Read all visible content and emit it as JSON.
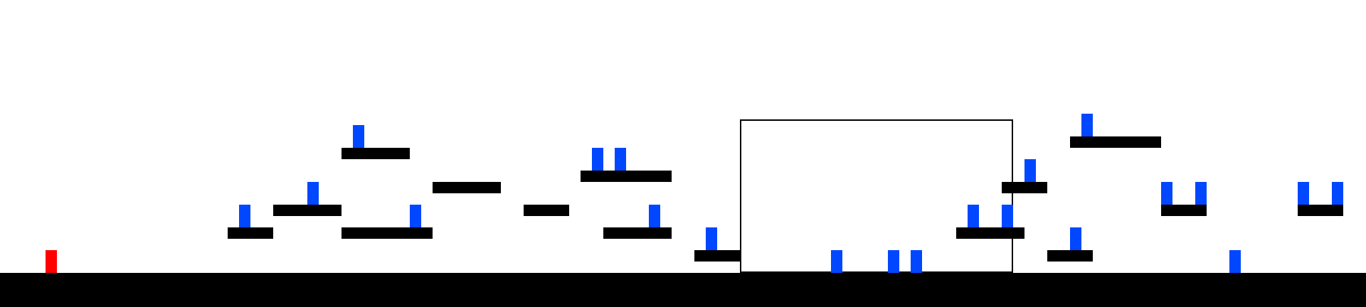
{
  "colors": {
    "background": "#ffffff",
    "ground": "#000000",
    "platform": "#000000",
    "player": "#ff0000",
    "enemy": "#0047ff",
    "frame_border": "#000000"
  },
  "entities": {
    "player": {
      "type": "player",
      "color": "red"
    },
    "enemy_type": "enemy",
    "platform_type": "platform",
    "ground_type": "ground",
    "frame_type": "outlined-rectangle"
  }
}
